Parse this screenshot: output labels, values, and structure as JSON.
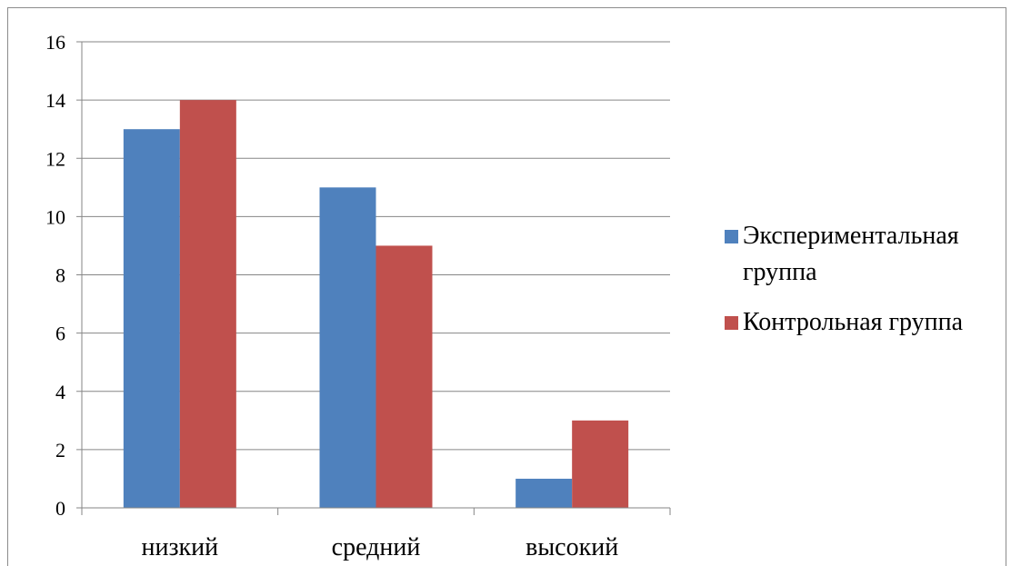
{
  "chart_data": {
    "type": "bar",
    "title": "",
    "xlabel": "",
    "ylabel": "",
    "categories": [
      "низкий",
      "средний",
      "высокий"
    ],
    "series": [
      {
        "name": "Экспериментальная группа",
        "values": [
          13,
          11,
          1
        ],
        "color": "#4F81BD"
      },
      {
        "name": "Контрольная группа",
        "values": [
          14,
          9,
          3
        ],
        "color": "#C0504D"
      }
    ],
    "ylim": [
      0,
      16
    ],
    "yticks": [
      0,
      2,
      4,
      6,
      8,
      10,
      12,
      14,
      16
    ],
    "grid": true,
    "legend_position": "right",
    "legend": {
      "entries": [
        {
          "lines": [
            "Экспериментальная",
            "группа"
          ],
          "color": "#4F81BD"
        },
        {
          "lines": [
            "Контрольная группа"
          ],
          "color": "#C0504D"
        }
      ]
    }
  }
}
